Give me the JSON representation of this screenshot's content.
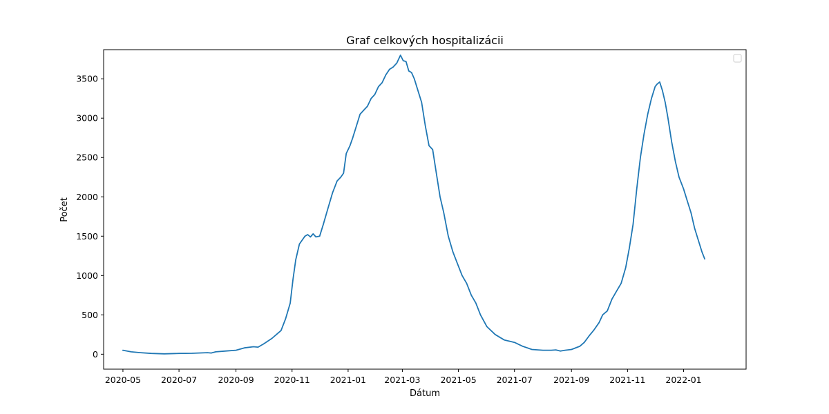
{
  "chart_data": {
    "type": "line",
    "title": "Graf celkových hospitalizácii",
    "xlabel": "Dátum",
    "ylabel": "Počet",
    "x_ticks": [
      "2020-05",
      "2020-07",
      "2020-09",
      "2020-11",
      "2021-01",
      "2021-03",
      "2021-05",
      "2021-07",
      "2021-09",
      "2021-11",
      "2022-01"
    ],
    "y_ticks": [
      0,
      500,
      1000,
      1500,
      2000,
      2500,
      3000,
      3500
    ],
    "xlim": [
      "2020-04-10",
      "2022-03-10"
    ],
    "ylim": [
      -190,
      3870
    ],
    "grid": false,
    "legend": {
      "location": "top-right",
      "entries": []
    },
    "series": [
      {
        "color": "#1f77b4",
        "x": [
          "2020-05-01",
          "2020-05-10",
          "2020-05-20",
          "2020-06-01",
          "2020-06-15",
          "2020-07-01",
          "2020-07-15",
          "2020-08-01",
          "2020-08-05",
          "2020-08-10",
          "2020-08-20",
          "2020-09-01",
          "2020-09-10",
          "2020-09-20",
          "2020-09-25",
          "2020-10-01",
          "2020-10-10",
          "2020-10-15",
          "2020-10-20",
          "2020-10-25",
          "2020-10-30",
          "2020-11-02",
          "2020-11-05",
          "2020-11-09",
          "2020-11-12",
          "2020-11-15",
          "2020-11-18",
          "2020-11-21",
          "2020-11-24",
          "2020-11-27",
          "2020-12-01",
          "2020-12-05",
          "2020-12-10",
          "2020-12-15",
          "2020-12-20",
          "2020-12-24",
          "2020-12-27",
          "2020-12-30",
          "2021-01-03",
          "2021-01-06",
          "2021-01-10",
          "2021-01-14",
          "2021-01-18",
          "2021-01-22",
          "2021-01-26",
          "2021-01-30",
          "2021-02-03",
          "2021-02-07",
          "2021-02-11",
          "2021-02-15",
          "2021-02-19",
          "2021-02-23",
          "2021-02-27",
          "2021-03-02",
          "2021-03-05",
          "2021-03-08",
          "2021-03-11",
          "2021-03-14",
          "2021-03-18",
          "2021-03-22",
          "2021-03-26",
          "2021-03-30",
          "2021-04-03",
          "2021-04-07",
          "2021-04-11",
          "2021-04-15",
          "2021-04-20",
          "2021-04-25",
          "2021-04-30",
          "2021-05-05",
          "2021-05-10",
          "2021-05-15",
          "2021-05-20",
          "2021-05-25",
          "2021-06-01",
          "2021-06-10",
          "2021-06-20",
          "2021-07-01",
          "2021-07-10",
          "2021-07-20",
          "2021-08-01",
          "2021-08-10",
          "2021-08-15",
          "2021-08-20",
          "2021-08-25",
          "2021-09-01",
          "2021-09-10",
          "2021-09-15",
          "2021-09-20",
          "2021-09-25",
          "2021-10-01",
          "2021-10-05",
          "2021-10-10",
          "2021-10-15",
          "2021-10-20",
          "2021-10-25",
          "2021-10-30",
          "2021-11-03",
          "2021-11-07",
          "2021-11-11",
          "2021-11-15",
          "2021-11-19",
          "2021-11-23",
          "2021-11-27",
          "2021-12-01",
          "2021-12-03",
          "2021-12-06",
          "2021-12-09",
          "2021-12-12",
          "2021-12-15",
          "2021-12-19",
          "2021-12-23",
          "2021-12-27",
          "2022-01-01",
          "2022-01-05",
          "2022-01-09",
          "2022-01-13",
          "2022-01-17",
          "2022-01-21",
          "2022-01-24"
        ],
        "values": [
          50,
          30,
          20,
          10,
          5,
          10,
          12,
          20,
          15,
          30,
          40,
          50,
          80,
          95,
          90,
          130,
          200,
          250,
          300,
          450,
          650,
          950,
          1200,
          1400,
          1450,
          1500,
          1520,
          1490,
          1530,
          1490,
          1500,
          1650,
          1850,
          2050,
          2200,
          2250,
          2300,
          2550,
          2650,
          2750,
          2900,
          3050,
          3100,
          3150,
          3250,
          3300,
          3400,
          3450,
          3550,
          3620,
          3650,
          3700,
          3800,
          3730,
          3720,
          3600,
          3580,
          3500,
          3350,
          3200,
          2900,
          2650,
          2600,
          2300,
          2000,
          1800,
          1500,
          1300,
          1150,
          1000,
          900,
          750,
          650,
          500,
          350,
          250,
          180,
          150,
          100,
          60,
          50,
          50,
          55,
          40,
          50,
          60,
          100,
          150,
          230,
          300,
          400,
          500,
          550,
          700,
          800,
          900,
          1100,
          1350,
          1650,
          2100,
          2500,
          2800,
          3050,
          3250,
          3400,
          3430,
          3460,
          3350,
          3200,
          3000,
          2700,
          2450,
          2250,
          2100,
          1950,
          1800,
          1600,
          1450,
          1300,
          1210
        ]
      }
    ]
  }
}
